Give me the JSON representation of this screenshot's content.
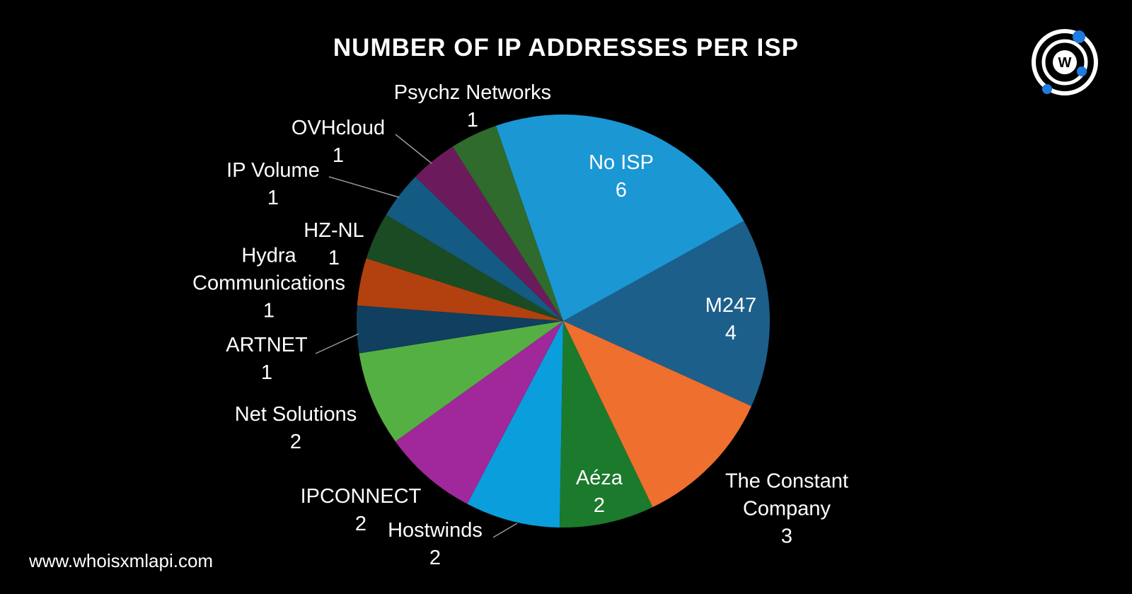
{
  "chart_data": {
    "type": "pie",
    "title": "NUMBER OF IP ADDRESSES PER ISP",
    "categories": [
      "No ISP",
      "M247",
      "The Constant Company",
      "Aéza",
      "Hostwinds",
      "IPCONNECT",
      "Net Solutions",
      "ARTNET",
      "Hydra Communications",
      "HZ-NL",
      "IP Volume",
      "OVHcloud",
      "Psychz Networks"
    ],
    "values": [
      6,
      4,
      3,
      2,
      2,
      2,
      2,
      1,
      1,
      1,
      1,
      1,
      1
    ],
    "colors": [
      "#1b97d3",
      "#1c5f8b",
      "#ef6f2e",
      "#1c7a2c",
      "#0a9fdc",
      "#a0289a",
      "#55b043",
      "#103f5f",
      "#b2410f",
      "#1b4b22",
      "#135b82",
      "#6b1b5c",
      "#2f6b2c"
    ]
  },
  "footer": "www.whoisxmlapi.com",
  "logo": "W"
}
